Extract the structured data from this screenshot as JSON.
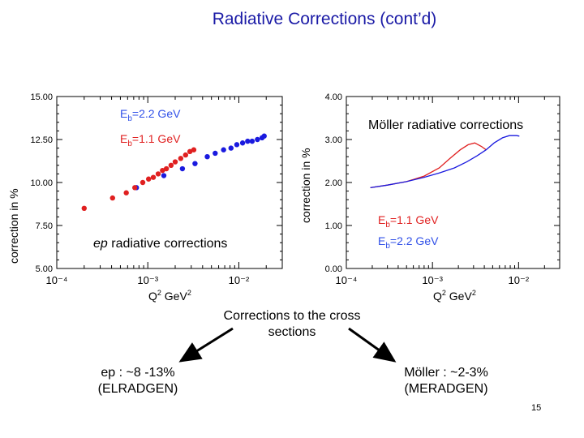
{
  "slide": {
    "title": "Radiative Corrections (cont’d)",
    "center_text": "Corrections to the cross sections",
    "left_result": [
      "ep : ~8 -13%",
      "(ELRADGEN)"
    ],
    "right_result": [
      "Möller : ~2-3%",
      "(MERADGEN)"
    ],
    "page_number": "15",
    "arrow_color": "#000000"
  },
  "chart_data": [
    {
      "type": "scatter",
      "xscale": "log",
      "xlim": [
        0.0001,
        0.03
      ],
      "ylim": [
        5.0,
        15.0
      ],
      "xlabel": "Q² GeV²",
      "ylabel": "correction in %",
      "x_tick_labels": [
        "10⁻⁴",
        "10⁻³",
        "10⁻²"
      ],
      "y_tick_labels": [
        "5.00",
        "7.50",
        "10.00",
        "12.50",
        "15.00"
      ],
      "annotation": "ep radiative corrections",
      "legend_entries": [
        "Eb=2.2 GeV",
        "Eb=1.1 GeV"
      ],
      "series": [
        {
          "name": "Eb=2.2 GeV",
          "color": "#1a1adf",
          "points": [
            [
              0.00075,
              9.7
            ],
            [
              0.0015,
              10.4
            ],
            [
              0.0024,
              10.8
            ],
            [
              0.0033,
              11.1
            ],
            [
              0.0045,
              11.5
            ],
            [
              0.0055,
              11.7
            ],
            [
              0.0068,
              11.9
            ],
            [
              0.0082,
              12.0
            ],
            [
              0.0095,
              12.2
            ],
            [
              0.011,
              12.3
            ],
            [
              0.0125,
              12.4
            ],
            [
              0.014,
              12.4
            ],
            [
              0.016,
              12.5
            ],
            [
              0.018,
              12.6
            ],
            [
              0.019,
              12.7
            ]
          ]
        },
        {
          "name": "Eb=1.1 GeV",
          "color": "#e02020",
          "points": [
            [
              0.0002,
              8.5
            ],
            [
              0.00041,
              9.1
            ],
            [
              0.00058,
              9.4
            ],
            [
              0.00072,
              9.7
            ],
            [
              0.00088,
              10.0
            ],
            [
              0.00102,
              10.2
            ],
            [
              0.00115,
              10.3
            ],
            [
              0.0013,
              10.5
            ],
            [
              0.00145,
              10.7
            ],
            [
              0.0016,
              10.8
            ],
            [
              0.0018,
              11.0
            ],
            [
              0.002,
              11.2
            ],
            [
              0.0023,
              11.4
            ],
            [
              0.0026,
              11.6
            ],
            [
              0.0029,
              11.8
            ],
            [
              0.0032,
              11.9
            ]
          ]
        }
      ]
    },
    {
      "type": "line",
      "xscale": "log",
      "xlim": [
        0.0001,
        0.03
      ],
      "ylim": [
        0.0,
        4.0
      ],
      "xlabel": "Q² GeV²",
      "ylabel": "correction in %",
      "x_tick_labels": [
        "10⁻⁴",
        "10⁻³",
        "10⁻²"
      ],
      "y_tick_labels": [
        "0.00",
        "1.00",
        "2.00",
        "3.00",
        "4.00"
      ],
      "annotation": "Möller radiative corrections",
      "legend_entries": [
        "Eb=1.1 GeV",
        "Eb=2.2 GeV"
      ],
      "series": [
        {
          "name": "Eb=1.1 GeV",
          "color": "#e02020",
          "points": [
            [
              0.00019,
              1.88
            ],
            [
              0.0003,
              1.94
            ],
            [
              0.0005,
              2.02
            ],
            [
              0.0008,
              2.15
            ],
            [
              0.0012,
              2.34
            ],
            [
              0.0016,
              2.56
            ],
            [
              0.0021,
              2.76
            ],
            [
              0.0026,
              2.88
            ],
            [
              0.0031,
              2.92
            ],
            [
              0.0037,
              2.84
            ],
            [
              0.0042,
              2.76
            ]
          ]
        },
        {
          "name": "Eb=2.2 GeV",
          "color": "#1a1adf",
          "points": [
            [
              0.00019,
              1.88
            ],
            [
              0.0003,
              1.94
            ],
            [
              0.0005,
              2.02
            ],
            [
              0.0008,
              2.12
            ],
            [
              0.0012,
              2.22
            ],
            [
              0.0018,
              2.34
            ],
            [
              0.0025,
              2.48
            ],
            [
              0.0033,
              2.62
            ],
            [
              0.0042,
              2.76
            ],
            [
              0.0052,
              2.92
            ],
            [
              0.0065,
              3.04
            ],
            [
              0.0078,
              3.09
            ],
            [
              0.0095,
              3.09
            ],
            [
              0.0102,
              3.08
            ]
          ]
        }
      ]
    }
  ]
}
